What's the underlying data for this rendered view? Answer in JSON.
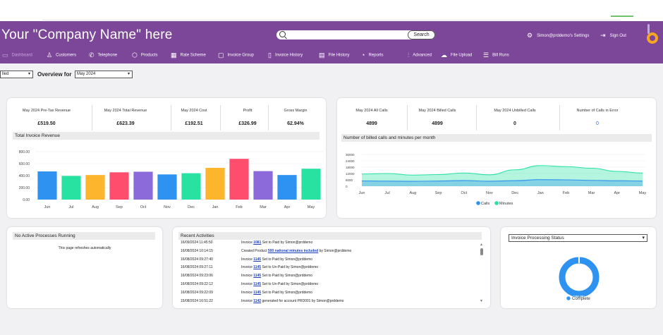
{
  "header": {
    "title": "Your \"Company Name\" here",
    "search_placeholder": "",
    "search_button": "Search",
    "settings_label": "Simon@prddemo's Settings",
    "signout_label": "Sign Out",
    "bg_color": "#7c4699"
  },
  "nav": [
    {
      "label": "Dashboard",
      "icon": "monitor-icon",
      "active": true
    },
    {
      "label": "Customers",
      "icon": "users-icon"
    },
    {
      "label": "Telephone",
      "icon": "phone-icon"
    },
    {
      "label": "Products",
      "icon": "box-icon"
    },
    {
      "label": "Rate Scheme",
      "icon": "table-icon"
    },
    {
      "label": "Invoice Group",
      "icon": "folder-icon"
    },
    {
      "label": "Invoice History",
      "icon": "document-icon"
    },
    {
      "label": "File History",
      "icon": "calendar-icon"
    },
    {
      "label": "Reports",
      "icon": "pie-chart-icon"
    },
    {
      "label": "Advanced",
      "icon": "sliders-icon"
    },
    {
      "label": "File Upload",
      "icon": "cloud-upload-icon"
    },
    {
      "label": "Bill Runs",
      "icon": "server-icon"
    }
  ],
  "filter": {
    "type_value": "lled",
    "overview_label": "Overview for",
    "month_value": "May 2024"
  },
  "revenue": {
    "kpis": [
      {
        "label": "May 2024 Pre-Tax Revenue",
        "value": "£519.50"
      },
      {
        "label": "May 2024 Total Revenue",
        "value": "£623.39"
      },
      {
        "label": "May 2024 Cost",
        "value": "£192.51"
      },
      {
        "label": "Profit",
        "value": "£326.99"
      },
      {
        "label": "Gross Margin",
        "value": "62.94%"
      }
    ],
    "section_title": "Total Invoice Revenue"
  },
  "calls": {
    "kpis": [
      {
        "label": "May 2024 All Calls",
        "value": "4899"
      },
      {
        "label": "May 2024 Billed Calls",
        "value": "4899"
      },
      {
        "label": "May 2024 Unbilled Calls",
        "value": "0"
      },
      {
        "label": "Number of Calls in Error",
        "value": "0"
      }
    ],
    "section_title": "Number of billed calls and minutes per month"
  },
  "processes": {
    "title": "No Active Processes Running",
    "note": "This page refreshes automatically"
  },
  "recent": {
    "title": "Recent Activities",
    "rows": [
      {
        "time": "16/09/2024 11:45:50",
        "pre": "Invoice ",
        "link": "1081",
        "post": " Set to Paid by Simon@prddemo"
      },
      {
        "time": "16/08/2024 10:14:15",
        "pre": "Created Product ",
        "link": "500 national minutes included",
        "post": " by Simon@prddemo"
      },
      {
        "time": "16/08/2024 09:27:40",
        "pre": "Invoice ",
        "link": "1145",
        "post": " Set to Paid by Simon@prddemo"
      },
      {
        "time": "16/08/2024 09:27:11",
        "pre": "Invoice ",
        "link": "1145",
        "post": " Set to Un-Paid by Simon@prddemo"
      },
      {
        "time": "16/08/2024 09:23:06",
        "pre": "Invoice ",
        "link": "1145",
        "post": " Set to Paid by Simon@prddemo"
      },
      {
        "time": "16/08/2024 09:22:12",
        "pre": "Invoice ",
        "link": "1145",
        "post": " Set to Un-Paid by Simon@prddemo"
      },
      {
        "time": "16/08/2024 09:22:09",
        "pre": "Invoice ",
        "link": "1145",
        "post": " Set to Paid by Simon@prddemo"
      },
      {
        "time": "15/08/2024 16:51:22",
        "pre": "Invoice ",
        "link": "1142",
        "post": " generated for account PRD001 by Simon@prddemo"
      }
    ]
  },
  "status": {
    "select_value": "Invoice Processing Status"
  },
  "chart_data": [
    {
      "type": "bar",
      "title": "Total Invoice Revenue",
      "categories": [
        "Jun",
        "Jul",
        "Aug",
        "Sep",
        "Oct",
        "Nov",
        "Dec",
        "Jan",
        "Feb",
        "Mar",
        "Apr",
        "May"
      ],
      "values": [
        470,
        395,
        410,
        455,
        465,
        420,
        440,
        530,
        680,
        475,
        410,
        515
      ],
      "colors": [
        "#2e93f0",
        "#28e2a2",
        "#feb52e",
        "#ff4d6d",
        "#8c6ad9",
        "#2e93f0",
        "#28e2a2",
        "#feb52e",
        "#ff4d6d",
        "#8c6ad9",
        "#2e93f0",
        "#28e2a2"
      ],
      "yticks": [
        "0.00",
        "200.00",
        "400.00",
        "600.00",
        "800.00"
      ],
      "ylim": [
        0,
        800
      ]
    },
    {
      "type": "area",
      "title": "Number of billed calls and minutes per month",
      "categories": [
        "Jun",
        "Jul",
        "Aug",
        "Sep",
        "Oct",
        "Nov",
        "Dec",
        "Jan",
        "Feb",
        "Mar",
        "Apr",
        "May"
      ],
      "yticks": [
        "0",
        "6000",
        "12000",
        "18000",
        "24000",
        "30000"
      ],
      "ylim": [
        0,
        30000
      ],
      "series": [
        {
          "name": "Calls",
          "color": "#2e93f0",
          "values": [
            5000,
            4800,
            4600,
            4900,
            5300,
            4700,
            5200,
            6200,
            6000,
            5500,
            5100,
            4899
          ]
        },
        {
          "name": "Minutes",
          "color": "#28e2a2",
          "values": [
            11500,
            12000,
            10500,
            11000,
            12500,
            10800,
            15500,
            19500,
            18500,
            17000,
            14000,
            12500
          ]
        }
      ]
    },
    {
      "type": "pie",
      "title": "",
      "categories": [
        "Complete"
      ],
      "values": [
        100
      ],
      "center_label": "100.0%",
      "colors": [
        "#2e93f0"
      ]
    }
  ]
}
